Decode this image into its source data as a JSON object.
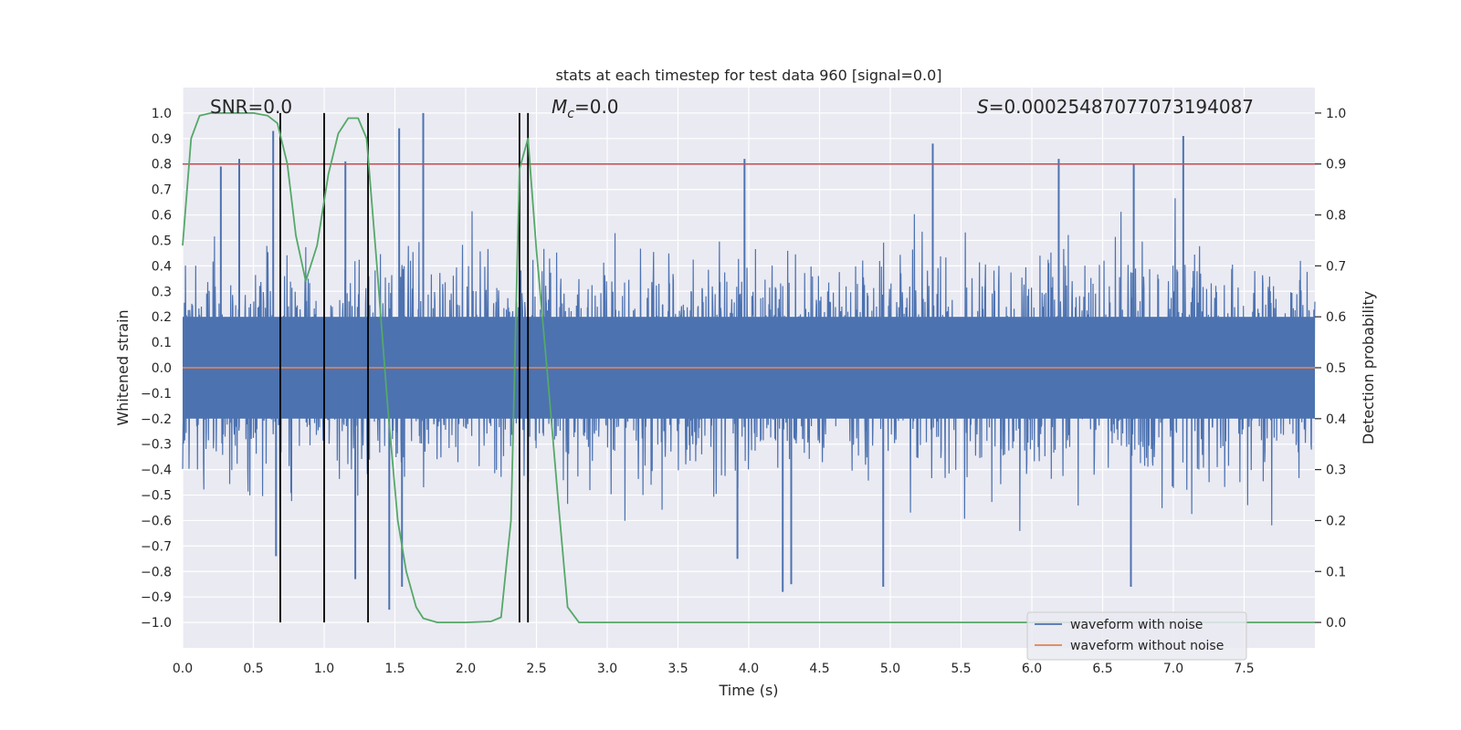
{
  "chart_data": {
    "type": "line",
    "title": "stats at each timestep for test data 960 [signal=0.0]",
    "xlabel": "Time (s)",
    "ylabel": "Whitened strain",
    "y2label": "Detection probability",
    "xlim": [
      0.0,
      8.0
    ],
    "ylim": [
      -1.1,
      1.1
    ],
    "y2lim": [
      -0.05,
      1.05
    ],
    "xticks": [
      0.0,
      0.5,
      1.0,
      1.5,
      2.0,
      2.5,
      3.0,
      3.5,
      4.0,
      4.5,
      5.0,
      5.5,
      6.0,
      6.5,
      7.0,
      7.5
    ],
    "yticks": [
      -1.0,
      -0.9,
      -0.8,
      -0.7,
      -0.6,
      -0.5,
      -0.4,
      -0.3,
      -0.2,
      -0.1,
      0.0,
      0.1,
      0.2,
      0.3,
      0.4,
      0.5,
      0.6,
      0.7,
      0.8,
      0.9,
      1.0
    ],
    "y2ticks": [
      0.0,
      0.1,
      0.2,
      0.3,
      0.4,
      0.5,
      0.6,
      0.7,
      0.8,
      0.9,
      1.0
    ],
    "grid": true,
    "annotations": {
      "snr": "SNR=0.0",
      "mc_sym": "M",
      "mc_sub": "c",
      "mc_val": "=0.0",
      "s_sym": "S",
      "s_val": "=0.0002548707707319408​7"
    },
    "threshold_line": {
      "axis": "right",
      "value": 0.9,
      "color": "#c44e52"
    },
    "vlines": {
      "x": [
        0.69,
        1.0,
        1.31,
        2.38,
        2.44
      ],
      "ymin": 0.0,
      "ymax": 1.0,
      "axis": "right",
      "color": "#000000"
    },
    "series": [
      {
        "name": "waveform with noise",
        "axis": "left",
        "color": "#4c72b0",
        "kind": "noise",
        "typical_amplitude": 0.33,
        "peaks": [
          {
            "x": 0.27,
            "y": 0.79
          },
          {
            "x": 0.4,
            "y": 0.82
          },
          {
            "x": 0.64,
            "y": 0.93
          },
          {
            "x": 1.15,
            "y": 0.81
          },
          {
            "x": 1.53,
            "y": 0.94
          },
          {
            "x": 1.7,
            "y": 1.0
          },
          {
            "x": 3.97,
            "y": 0.82
          },
          {
            "x": 5.3,
            "y": 0.88
          },
          {
            "x": 6.19,
            "y": 0.82
          },
          {
            "x": 6.72,
            "y": 0.8
          },
          {
            "x": 7.07,
            "y": 0.91
          },
          {
            "x": 0.66,
            "y": -0.74
          },
          {
            "x": 1.22,
            "y": -0.83
          },
          {
            "x": 1.46,
            "y": -0.95
          },
          {
            "x": 1.55,
            "y": -0.86
          },
          {
            "x": 4.24,
            "y": -0.88
          },
          {
            "x": 4.3,
            "y": -0.85
          },
          {
            "x": 4.95,
            "y": -0.86
          },
          {
            "x": 6.7,
            "y": -0.86
          },
          {
            "x": 3.92,
            "y": -0.75
          }
        ]
      },
      {
        "name": "waveform without noise",
        "axis": "left",
        "color": "#dd8452",
        "x": [
          0.0,
          8.0
        ],
        "y": [
          0.0,
          0.0
        ]
      },
      {
        "name": "detection probability",
        "axis": "right",
        "color": "#55a868",
        "x": [
          0.0,
          0.06,
          0.12,
          0.2,
          0.3,
          0.5,
          0.6,
          0.67,
          0.74,
          0.8,
          0.87,
          0.95,
          1.03,
          1.1,
          1.17,
          1.24,
          1.3,
          1.37,
          1.45,
          1.52,
          1.58,
          1.65,
          1.7,
          1.8,
          2.0,
          2.18,
          2.25,
          2.32,
          2.38,
          2.44,
          2.5,
          2.58,
          2.65,
          2.72,
          2.8,
          2.9,
          8.0
        ],
        "y": [
          0.74,
          0.95,
          0.995,
          1.0,
          1.0,
          1.0,
          0.995,
          0.98,
          0.9,
          0.76,
          0.67,
          0.74,
          0.88,
          0.96,
          0.99,
          0.99,
          0.95,
          0.71,
          0.42,
          0.2,
          0.1,
          0.03,
          0.008,
          0.0,
          0.0,
          0.002,
          0.01,
          0.2,
          0.89,
          0.95,
          0.73,
          0.48,
          0.25,
          0.03,
          0.0,
          0.0,
          0.0
        ]
      }
    ],
    "legend": {
      "location": "lower-right",
      "entries": [
        {
          "label": "waveform with noise",
          "color": "#4c72b0"
        },
        {
          "label": "waveform without noise",
          "color": "#dd8452"
        }
      ]
    }
  }
}
